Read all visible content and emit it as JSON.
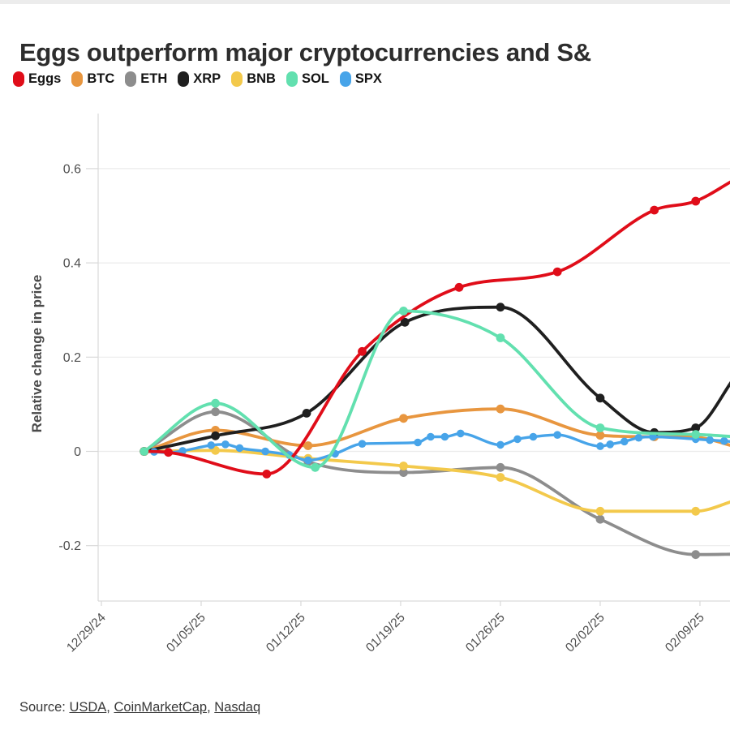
{
  "title": "Eggs outperform major cryptocurrencies and S&",
  "source": {
    "prefix": "Source:",
    "separator": ", ",
    "links": [
      "USDA",
      "CoinMarketCap",
      "Nasdaq"
    ]
  },
  "chart_data": {
    "type": "line",
    "title": "Eggs outperform major cryptocurrencies and S&",
    "xlabel": "",
    "ylabel": "Relative change in price",
    "grid": "horizontal",
    "legend_position": "top",
    "x_unit": "days since 12/29/24",
    "x_tick_days": [
      0,
      7,
      14,
      21,
      28,
      35,
      42
    ],
    "x_tick_labels": [
      "12/29/24",
      "01/05/25",
      "01/12/25",
      "01/19/25",
      "01/26/25",
      "02/02/25",
      "02/09/25"
    ],
    "y_ticks": [
      -0.2,
      0,
      0.2,
      0.4,
      0.6
    ],
    "y_tick_labels": [
      "-0.2",
      "0",
      "0.2",
      "0.4",
      "0.6"
    ],
    "ylim": [
      -0.32,
      0.71
    ],
    "xlim_days": [
      0,
      44.2
    ],
    "colors": {
      "Eggs": "#e00d19",
      "BTC": "#e8963f",
      "ETH": "#8d8d8d",
      "XRP": "#1f1f1f",
      "BNB": "#f3c94b",
      "SOL": "#62e0af",
      "SPX": "#47a4e9",
      "grid": "#ececec",
      "axis": "#d9d9d9",
      "tick_text": "#4f4f4f",
      "title_text": "#2d2d2d"
    },
    "draw_order": [
      "ETH",
      "BNB",
      "BTC",
      "XRP",
      "SPX",
      "Eggs",
      "SOL"
    ],
    "series": [
      {
        "name": "Eggs",
        "color": "#e00d19",
        "dot_radius": 5.4,
        "stroke_width": 3.8,
        "points": [
          [
            3,
            0
          ],
          [
            4.7,
            -0.002
          ],
          [
            11.6,
            -0.048
          ],
          [
            18.3,
            0.212
          ],
          [
            25.1,
            0.348
          ],
          [
            32,
            0.381
          ],
          [
            38.8,
            0.512
          ],
          [
            41.7,
            0.531
          ],
          [
            44.5,
            0.578
          ]
        ]
      },
      {
        "name": "BTC",
        "color": "#e8963f",
        "dot_radius": 5.4,
        "stroke_width": 3.8,
        "points": [
          [
            3,
            0
          ],
          [
            8,
            0.045
          ],
          [
            14.5,
            0.012
          ],
          [
            21.2,
            0.07
          ],
          [
            28,
            0.09
          ],
          [
            35,
            0.034
          ],
          [
            38.8,
            0.031
          ],
          [
            41.7,
            0.03
          ],
          [
            44.5,
            0.01
          ]
        ]
      },
      {
        "name": "ETH",
        "color": "#8d8d8d",
        "dot_radius": 5.4,
        "stroke_width": 3.8,
        "points": [
          [
            3,
            0
          ],
          [
            8,
            0.084
          ],
          [
            14.5,
            -0.022
          ],
          [
            21.2,
            -0.045
          ],
          [
            28,
            -0.034
          ],
          [
            35,
            -0.144
          ],
          [
            41.7,
            -0.219
          ],
          [
            44.5,
            -0.218
          ]
        ]
      },
      {
        "name": "XRP",
        "color": "#1f1f1f",
        "dot_radius": 5.4,
        "stroke_width": 3.8,
        "points": [
          [
            3,
            0
          ],
          [
            8,
            0.033
          ],
          [
            14.4,
            0.081
          ],
          [
            21.3,
            0.274
          ],
          [
            28,
            0.306
          ],
          [
            35,
            0.113
          ],
          [
            38.8,
            0.04
          ],
          [
            41.7,
            0.05
          ],
          [
            44.5,
            0.16
          ]
        ]
      },
      {
        "name": "BNB",
        "color": "#f3c94b",
        "dot_radius": 5.4,
        "stroke_width": 3.8,
        "points": [
          [
            3,
            0
          ],
          [
            8,
            0.002
          ],
          [
            14.5,
            -0.015
          ],
          [
            21.2,
            -0.031
          ],
          [
            28,
            -0.055
          ],
          [
            35,
            -0.127
          ],
          [
            41.7,
            -0.127
          ],
          [
            44.5,
            -0.104
          ]
        ]
      },
      {
        "name": "SOL",
        "color": "#62e0af",
        "dot_radius": 5.4,
        "stroke_width": 3.8,
        "points": [
          [
            3,
            0
          ],
          [
            8,
            0.102
          ],
          [
            15,
            -0.034
          ],
          [
            21.2,
            0.298
          ],
          [
            28,
            0.241
          ],
          [
            35,
            0.05
          ],
          [
            41.7,
            0.036
          ],
          [
            44.5,
            0.031
          ]
        ]
      },
      {
        "name": "SPX",
        "color": "#47a4e9",
        "dot_radius": 4.8,
        "stroke_width": 3.4,
        "points": [
          [
            3,
            0
          ],
          [
            3.7,
            -0.001
          ],
          [
            4.7,
            -0.003
          ],
          [
            5.7,
            0.001
          ],
          [
            7.7,
            0.013
          ],
          [
            8.7,
            0.015
          ],
          [
            9.7,
            0.007
          ],
          [
            11.5,
            0
          ],
          [
            13.2,
            -0.008
          ],
          [
            14.5,
            -0.019
          ],
          [
            16.4,
            -0.005
          ],
          [
            18.3,
            0.016
          ],
          [
            22.2,
            0.019
          ],
          [
            23.1,
            0.031
          ],
          [
            24.1,
            0.031
          ],
          [
            25.2,
            0.038
          ],
          [
            28,
            0.014
          ],
          [
            29.2,
            0.026
          ],
          [
            30.3,
            0.031
          ],
          [
            32,
            0.035
          ],
          [
            35,
            0.011
          ],
          [
            35.7,
            0.015
          ],
          [
            36.7,
            0.021
          ],
          [
            37.7,
            0.029
          ],
          [
            38.7,
            0.031
          ],
          [
            41.7,
            0.026
          ],
          [
            42.7,
            0.024
          ],
          [
            43.7,
            0.022
          ],
          [
            44.5,
            0.02
          ]
        ]
      }
    ]
  }
}
